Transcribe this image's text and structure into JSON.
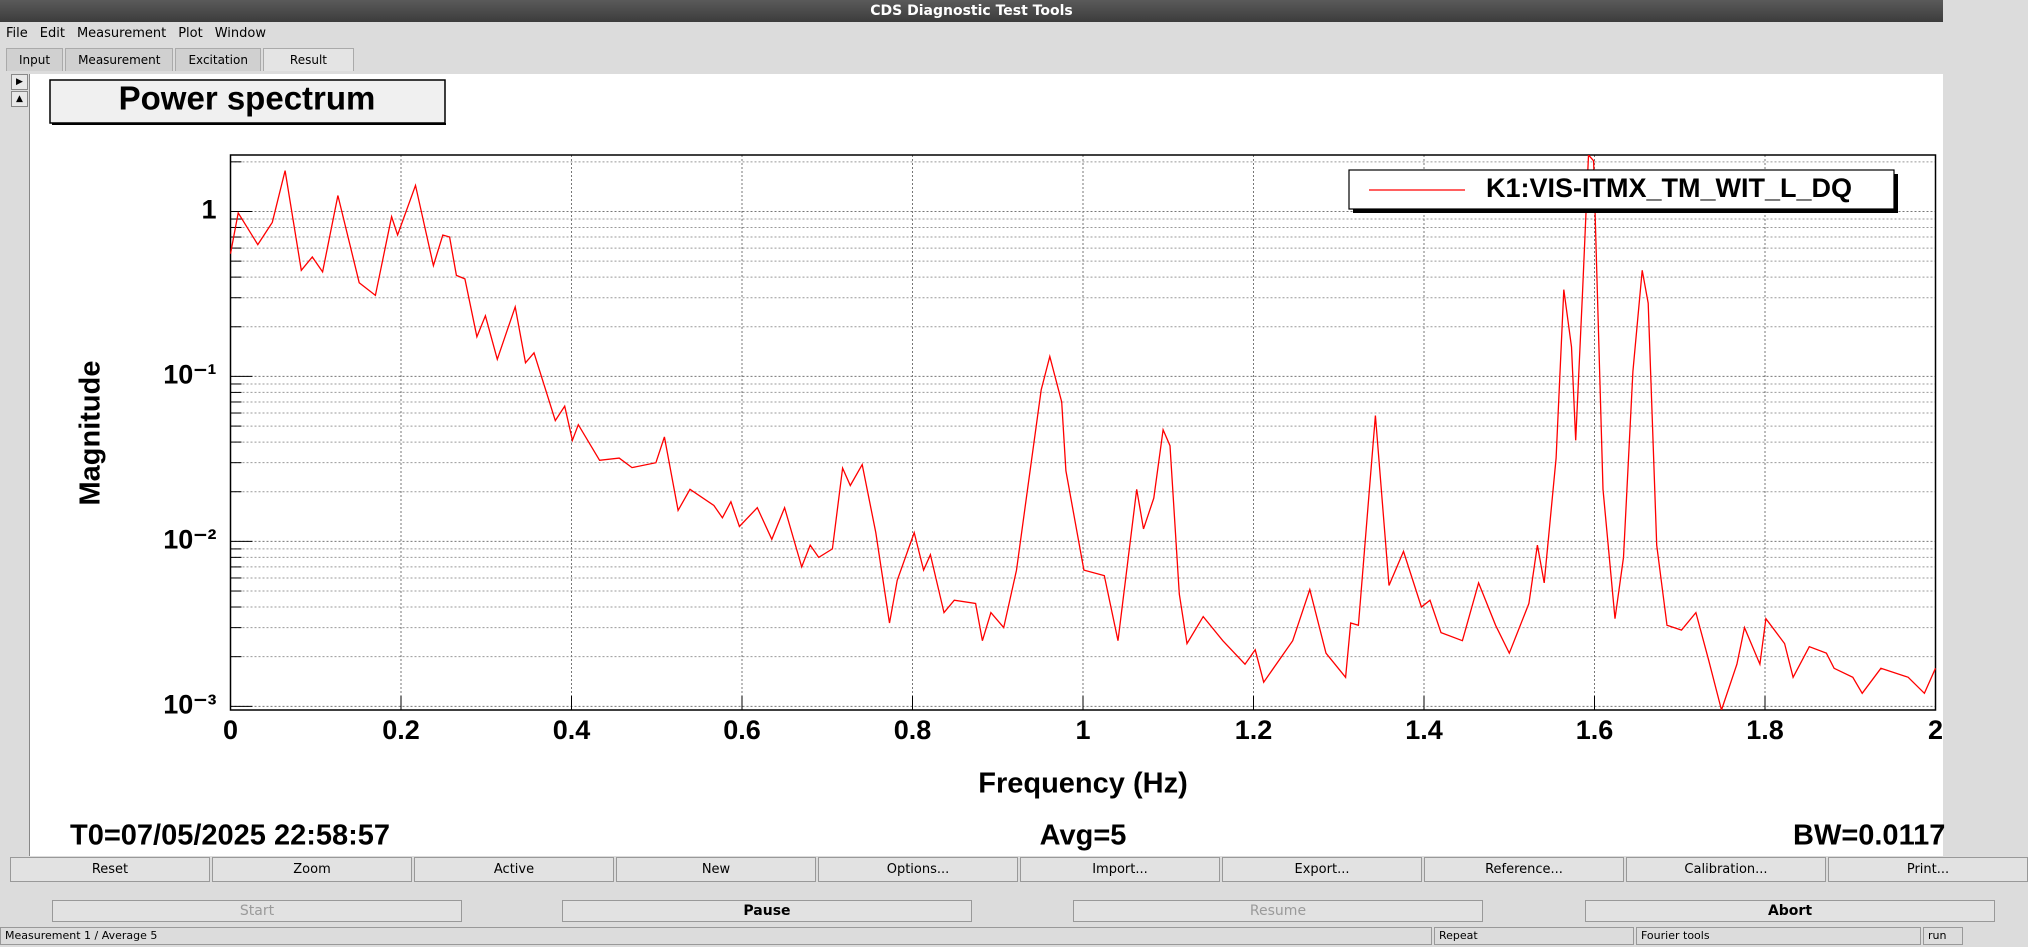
{
  "window": {
    "title": "CDS Diagnostic Test Tools"
  },
  "menu": [
    "File",
    "Edit",
    "Measurement",
    "Plot",
    "Window"
  ],
  "tabs": [
    "Input",
    "Measurement",
    "Excitation",
    "Result"
  ],
  "plot_title": "Power spectrum",
  "chart_data": {
    "type": "line",
    "xlabel": "Frequency (Hz)",
    "ylabel": "Magnitude",
    "log_y": true,
    "grid": true,
    "legend": "upper right",
    "xlim": [
      0,
      2
    ],
    "ylim": [
      0.00095,
      2.2
    ],
    "xticks": [
      0,
      0.2,
      0.4,
      0.6,
      0.8,
      1,
      1.2,
      1.4,
      1.6,
      1.8,
      2
    ],
    "yticks": [
      {
        "value": 0.001,
        "label": "10⁻³"
      },
      {
        "value": 0.01,
        "label": "10⁻²"
      },
      {
        "value": 0.1,
        "label": "10⁻¹"
      },
      1
    ],
    "yminorticks": [
      0.002,
      0.003,
      0.004,
      0.005,
      0.006,
      0.007,
      0.008,
      0.009,
      0.02,
      0.03,
      0.04,
      0.05,
      0.06,
      0.07,
      0.08,
      0.09,
      0.2,
      0.3,
      0.4,
      0.5,
      0.6,
      0.7,
      0.8,
      0.9,
      2
    ],
    "x": [
      0,
      0.009,
      0.032,
      0.049,
      0.064,
      0.083,
      0.096,
      0.108,
      0.126,
      0.151,
      0.17,
      0.189,
      0.196,
      0.217,
      0.238,
      0.249,
      0.257,
      0.265,
      0.275,
      0.289,
      0.299,
      0.313,
      0.334,
      0.346,
      0.356,
      0.381,
      0.392,
      0.401,
      0.408,
      0.433,
      0.456,
      0.471,
      0.499,
      0.509,
      0.525,
      0.539,
      0.567,
      0.577,
      0.587,
      0.597,
      0.618,
      0.635,
      0.65,
      0.67,
      0.68,
      0.69,
      0.706,
      0.718,
      0.727,
      0.741,
      0.757,
      0.773,
      0.782,
      0.802,
      0.813,
      0.821,
      0.837,
      0.849,
      0.874,
      0.882,
      0.892,
      0.907,
      0.922,
      0.936,
      0.951,
      0.961,
      0.975,
      0.98,
      1.001,
      1.025,
      1.041,
      1.063,
      1.071,
      1.083,
      1.094,
      1.102,
      1.113,
      1.122,
      1.141,
      1.164,
      1.19,
      1.202,
      1.212,
      1.246,
      1.266,
      1.285,
      1.308,
      1.314,
      1.323,
      1.343,
      1.359,
      1.376,
      1.397,
      1.407,
      1.42,
      1.445,
      1.464,
      1.484,
      1.5,
      1.523,
      1.533,
      1.541,
      1.555,
      1.564,
      1.573,
      1.578,
      1.586,
      1.593,
      1.599,
      1.61,
      1.624,
      1.634,
      1.645,
      1.656,
      1.663,
      1.673,
      1.685,
      1.702,
      1.719,
      1.734,
      1.749,
      1.767,
      1.776,
      1.794,
      1.801,
      1.823,
      1.833,
      1.852,
      1.872,
      1.881,
      1.903,
      1.914,
      1.936,
      1.968,
      1.987,
      2
    ],
    "series": [
      {
        "name": "K1:VIS-ITMX_TM_WIT_L_DQ",
        "color": "#ff0000",
        "values": [
          0.555,
          0.98,
          0.63,
          0.86,
          1.77,
          0.44,
          0.53,
          0.43,
          1.25,
          0.37,
          0.31,
          0.93,
          0.72,
          1.44,
          0.47,
          0.72,
          0.7,
          0.41,
          0.39,
          0.174,
          0.233,
          0.127,
          0.264,
          0.121,
          0.139,
          0.054,
          0.066,
          0.041,
          0.051,
          0.031,
          0.032,
          0.028,
          0.03,
          0.043,
          0.0154,
          0.0207,
          0.0165,
          0.0139,
          0.0174,
          0.0123,
          0.016,
          0.0103,
          0.016,
          0.007,
          0.0095,
          0.008,
          0.009,
          0.0278,
          0.0218,
          0.0292,
          0.0113,
          0.0032,
          0.0058,
          0.0113,
          0.0067,
          0.0083,
          0.0037,
          0.0044,
          0.0042,
          0.0025,
          0.0037,
          0.003,
          0.0067,
          0.0226,
          0.083,
          0.132,
          0.07,
          0.0268,
          0.0067,
          0.0062,
          0.0025,
          0.0207,
          0.0119,
          0.0183,
          0.0475,
          0.038,
          0.0048,
          0.0024,
          0.0035,
          0.0025,
          0.0018,
          0.0022,
          0.0014,
          0.0025,
          0.0051,
          0.0021,
          0.0015,
          0.0032,
          0.0031,
          0.058,
          0.0054,
          0.0087,
          0.004,
          0.0044,
          0.0028,
          0.0025,
          0.0056,
          0.0031,
          0.0021,
          0.0042,
          0.0095,
          0.0056,
          0.032,
          0.336,
          0.151,
          0.041,
          0.33,
          2.2,
          2.03,
          0.0207,
          0.0034,
          0.008,
          0.107,
          0.44,
          0.278,
          0.0095,
          0.0031,
          0.0029,
          0.0037,
          0.0019,
          0.00095,
          0.0018,
          0.003,
          0.0018,
          0.0034,
          0.0024,
          0.0015,
          0.0023,
          0.0021,
          0.0017,
          0.0015,
          0.0012,
          0.0017,
          0.0015,
          0.0012,
          0.0017
        ]
      }
    ]
  },
  "info": {
    "t0": "T0=07/05/2025 22:58:57",
    "avg": "Avg=5",
    "bw": "BW=0.0117"
  },
  "buttons": [
    "Reset",
    "Zoom",
    "Active",
    "New",
    "Options...",
    "Import...",
    "Export...",
    "Reference...",
    "Calibration...",
    "Print..."
  ],
  "controls": [
    "Start",
    "Pause",
    "Resume",
    "Abort"
  ],
  "status": [
    "Measurement 1 / Average 5",
    "Repeat",
    "Fourier tools",
    "run"
  ]
}
